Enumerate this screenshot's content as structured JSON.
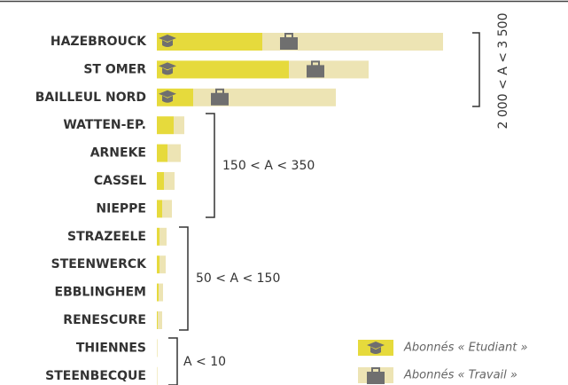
{
  "chart_data": {
    "type": "bar",
    "orientation": "horizontal",
    "stacked": true,
    "categories": [
      "HAZEBROUCK",
      "ST OMER",
      "BAILLEUL NORD",
      "WATTEN-EP.",
      "ARNEKE",
      "CASSEL",
      "NIEPPE",
      "STRAZEELE",
      "STEENWERCK",
      "EBBLINGHEM",
      "RENESCURE",
      "THIENNES",
      "STEENBECQUE"
    ],
    "series": [
      {
        "name": "Abonnés « Etudiant »",
        "color": "#e6da3c",
        "values": [
          1190,
          1490,
          410,
          190,
          120,
          80,
          60,
          30,
          30,
          20,
          10,
          2,
          2
        ]
      },
      {
        "name": "Abonnés « Travail »",
        "color": "#ede4b4",
        "values": [
          2040,
          900,
          1610,
          120,
          150,
          120,
          110,
          80,
          70,
          50,
          50,
          6,
          5
        ]
      }
    ],
    "annotations": [
      "2 000 < A < 3 500",
      "150 < A < 350",
      "50 < A < 150",
      "A < 10"
    ]
  }
}
